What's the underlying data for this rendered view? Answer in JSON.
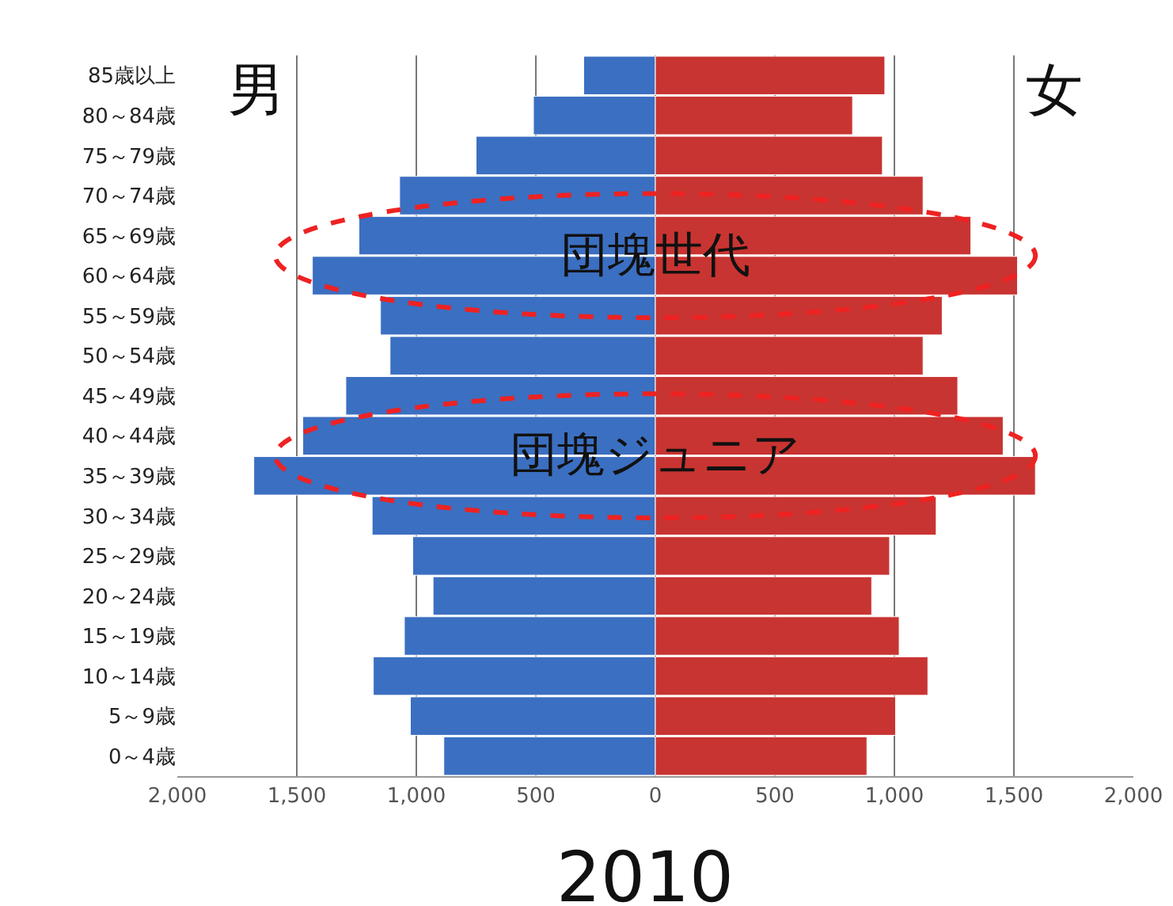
{
  "chart_data": {
    "type": "bar",
    "orientation": "horizontal",
    "stacked": true,
    "title": "2010",
    "categories": [
      "85歳以上",
      "80～84歳",
      "75～79歳",
      "70～74歳",
      "65～69歳",
      "60～64歳",
      "55～59歳",
      "50～54歳",
      "45～49歳",
      "40～44歳",
      "35～39歳",
      "30～34歳",
      "25～29歳",
      "20～24歳",
      "15～19歳",
      "10～14歳",
      "5～9歳",
      "0～4歳"
    ],
    "series": [
      {
        "name": "男",
        "color": "#3b6fc1",
        "values": [
          -300,
          -510,
          -750,
          -1070,
          -1240,
          -1435,
          -1150,
          -1110,
          -1295,
          -1475,
          -1680,
          -1185,
          -1015,
          -930,
          -1050,
          -1180,
          -1025,
          -885
        ]
      },
      {
        "name": "女",
        "color": "#c83431",
        "values": [
          960,
          825,
          950,
          1120,
          1320,
          1515,
          1200,
          1120,
          1265,
          1455,
          1590,
          1175,
          980,
          905,
          1020,
          1140,
          1005,
          885
        ]
      }
    ],
    "xlim": [
      -2000,
      2000
    ],
    "xticks": [
      {
        "value": -2000,
        "label": "2,000"
      },
      {
        "value": -1500,
        "label": "1,500"
      },
      {
        "value": -1000,
        "label": "1,000"
      },
      {
        "value": -500,
        "label": "500"
      },
      0,
      500,
      {
        "value": 1000,
        "label": "1,000"
      },
      {
        "value": 1500,
        "label": "1,500"
      },
      {
        "value": 2000,
        "label": "2,000"
      }
    ],
    "grid": "x",
    "annotations": [
      {
        "text": "団塊世代",
        "x": 0,
        "y": "65～69歳"
      },
      {
        "text": "団塊ジュニア",
        "x": 0,
        "y": "40～44歳"
      }
    ]
  }
}
